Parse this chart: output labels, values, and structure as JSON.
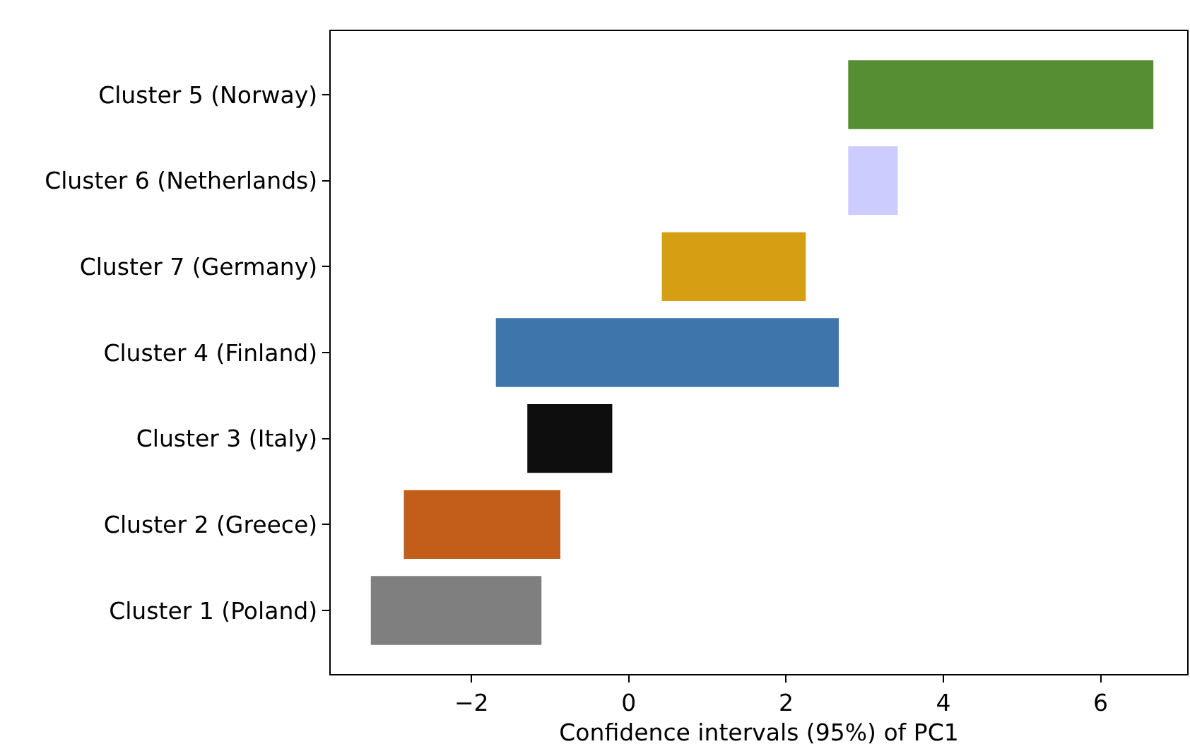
{
  "chart_data": {
    "type": "bar",
    "orientation": "horizontal",
    "xlabel": "Confidence intervals (95%) of PC1",
    "categories": [
      "Cluster 5 (Norway)",
      "Cluster 6 (Netherlands)",
      "Cluster 7 (Germany)",
      "Cluster 4 (Finland)",
      "Cluster 3 (Italy)",
      "Cluster 2 (Greece)",
      "Cluster 1 (Poland)"
    ],
    "base": [
      2.79,
      2.79,
      0.42,
      -1.69,
      -1.29,
      -2.86,
      -3.28
    ],
    "values": [
      3.88,
      0.63,
      1.83,
      4.36,
      1.08,
      1.99,
      2.17
    ],
    "colors": [
      "#568e33",
      "#ccccff",
      "#d69e12",
      "#3e76ac",
      "#0e0e0e",
      "#c25d1a",
      "#7f7f7f"
    ],
    "xlim": [
      -3.79,
      7.1
    ],
    "xticks": [
      {
        "value": -2,
        "label": "−2"
      },
      0,
      2,
      4,
      6
    ],
    "grid": false
  }
}
